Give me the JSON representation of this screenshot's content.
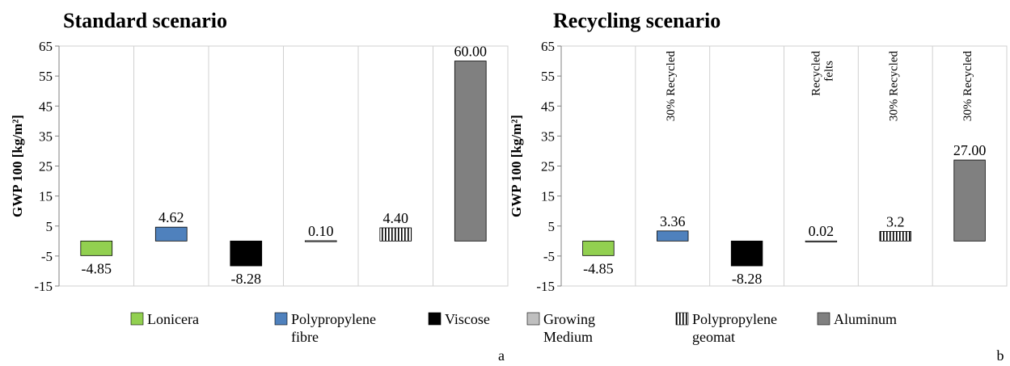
{
  "legend": [
    {
      "label": "Lonicera",
      "color": "#92d050",
      "pattern": "solid"
    },
    {
      "label": "Polypropylene fibre",
      "color": "#4f81bd",
      "pattern": "solid"
    },
    {
      "label": "Viscose",
      "color": "#000000",
      "pattern": "solid"
    },
    {
      "label": "Growing Medium",
      "color": "#bfbfbf",
      "pattern": "solid"
    },
    {
      "label": "Polypropylene geomat",
      "color": "#ffffff",
      "pattern": "vertical-stripes"
    },
    {
      "label": "Aluminum",
      "color": "#808080",
      "pattern": "solid"
    }
  ],
  "chart_data": [
    {
      "type": "bar",
      "panel_label": "a",
      "title": "Standard scenario",
      "ylabel": "GWP 100 [kg/m²]",
      "ylim": [
        -15,
        65
      ],
      "yticks": [
        -15,
        -5,
        5,
        15,
        25,
        35,
        45,
        55,
        65
      ],
      "grid": "vertical",
      "categories": [
        "Lonicera",
        "Polypropylene fibre",
        "Viscose",
        "Growing Medium",
        "Polypropylene geomat",
        "Aluminum"
      ],
      "values": [
        -4.85,
        4.62,
        -8.28,
        0.1,
        4.4,
        60.0
      ],
      "data_labels": [
        "-4.85",
        "4.62",
        "-8.28",
        "0.10",
        "4.40",
        "60.00"
      ],
      "annotations": [
        "",
        "",
        "",
        "",
        "",
        ""
      ]
    },
    {
      "type": "bar",
      "panel_label": "b",
      "title": "Recycling scenario",
      "ylabel": "GWP 100 [kg/m²]",
      "ylim": [
        -15,
        65
      ],
      "yticks": [
        -15,
        -5,
        5,
        15,
        25,
        35,
        45,
        55,
        65
      ],
      "grid": "vertical",
      "categories": [
        "Lonicera",
        "Polypropylene fibre",
        "Viscose",
        "Growing Medium",
        "Polypropylene geomat",
        "Aluminum"
      ],
      "values": [
        -4.85,
        3.36,
        -8.28,
        0.02,
        3.2,
        27.0
      ],
      "data_labels": [
        "-4.85",
        "3.36",
        "-8.28",
        "0.02",
        "3.2",
        "27.00"
      ],
      "annotations": [
        "",
        "30% Recycled",
        "",
        "Recycled felts",
        "30% Recycled",
        "30% Recycled"
      ]
    }
  ]
}
